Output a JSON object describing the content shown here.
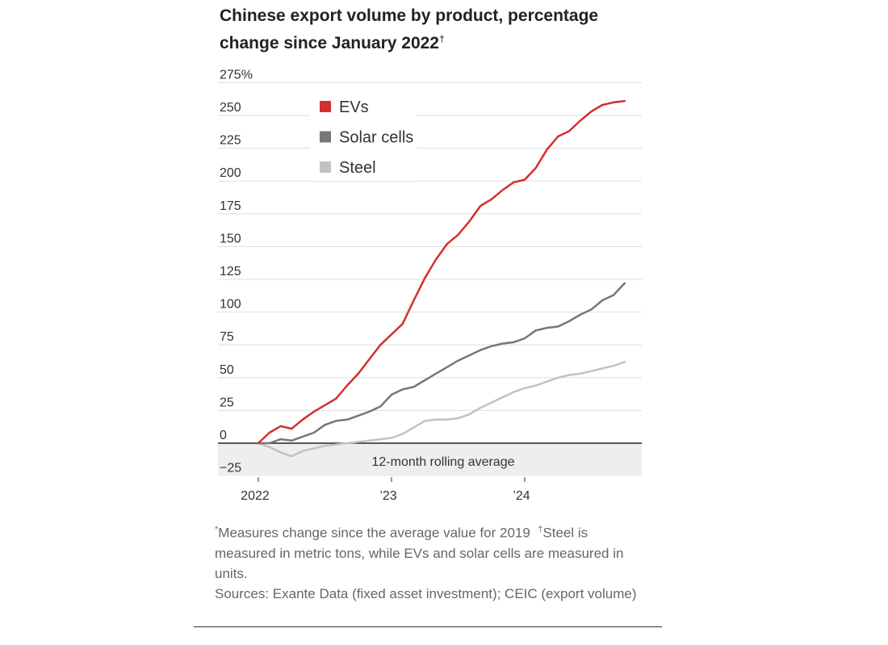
{
  "chart_data": {
    "type": "line",
    "title": "Chinese export volume by product, percentage change since January 2022",
    "title_mark": "†",
    "ylabel": "",
    "xlabel": "",
    "ylim": [
      -25,
      275
    ],
    "y_ticks": [
      -25,
      0,
      25,
      50,
      75,
      100,
      125,
      150,
      175,
      200,
      225,
      250,
      275
    ],
    "y_tick_labels": [
      "−25",
      "0",
      "25",
      "50",
      "75",
      "100",
      "125",
      "150",
      "175",
      "200",
      "225",
      "250",
      "275%"
    ],
    "x_tick_labels": [
      "2022",
      "’23",
      "’24"
    ],
    "x_ticks": [
      2022.0,
      2023.0,
      2024.0
    ],
    "shaded_band": {
      "from": -25,
      "to": 0,
      "label": "12-month rolling average"
    },
    "legend_position": "top-left",
    "x": [
      2022.0,
      2022.083,
      2022.167,
      2022.25,
      2022.333,
      2022.417,
      2022.5,
      2022.583,
      2022.667,
      2022.75,
      2022.833,
      2022.917,
      2023.0,
      2023.083,
      2023.167,
      2023.25,
      2023.333,
      2023.417,
      2023.5,
      2023.583,
      2023.667,
      2023.75,
      2023.833,
      2023.917,
      2024.0,
      2024.083,
      2024.167,
      2024.25,
      2024.333,
      2024.417,
      2024.5,
      2024.583,
      2024.667,
      2024.75
    ],
    "series": [
      {
        "name": "EVs",
        "color": "#d32f2f",
        "values": [
          0,
          8,
          13,
          11,
          18,
          24,
          29,
          34,
          44,
          53,
          64,
          75,
          83,
          91,
          109,
          126,
          140,
          152,
          159,
          169,
          181,
          186,
          193,
          199,
          201,
          210,
          224,
          234,
          238,
          246,
          253,
          258,
          260,
          261
        ]
      },
      {
        "name": "Solar cells",
        "color": "#777777",
        "values": [
          0,
          0,
          3,
          2,
          5,
          8,
          14,
          17,
          18,
          21,
          24,
          28,
          37,
          41,
          43,
          48,
          53,
          58,
          63,
          67,
          71,
          74,
          76,
          77,
          80,
          86,
          88,
          89,
          93,
          98,
          102,
          109,
          113,
          122
        ]
      },
      {
        "name": "Steel",
        "color": "#c2c2c2",
        "values": [
          0,
          -3,
          -7,
          -10,
          -6,
          -4,
          -2,
          -1,
          0,
          1,
          2,
          3,
          4,
          7,
          12,
          17,
          18,
          18,
          19,
          22,
          27,
          31,
          35,
          39,
          42,
          44,
          47,
          50,
          52,
          53,
          55,
          57,
          59,
          62
        ]
      }
    ]
  },
  "notes": {
    "measures_mark": "*",
    "measures": "Measures change since the average value for 2019",
    "steel_mark": "†",
    "steel": "Steel is measured in metric tons, while EVs and solar cells are measured in units.",
    "sources": "Sources: Exante Data (fixed asset investment); CEIC (export volume)"
  }
}
